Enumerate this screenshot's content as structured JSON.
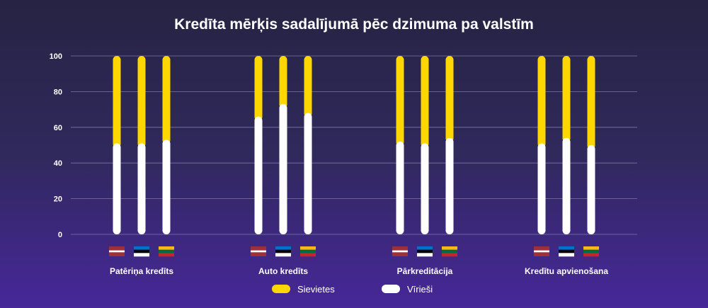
{
  "chart_data": {
    "type": "bar",
    "stacked": true,
    "title": "Kredīta mērķis sadalījumā pēc dzimuma pa valstīm",
    "categories": [
      "Patēriņa kredīts",
      "Auto kredīts",
      "Pārkreditācija",
      "Kredītu apvienošana"
    ],
    "countries": [
      {
        "name": "LV",
        "flag_colors": [
          "#9e3039",
          "#ffffff",
          "#9e3039"
        ]
      },
      {
        "name": "EE",
        "flag_colors": [
          "#0072ce",
          "#000000",
          "#ffffff"
        ]
      },
      {
        "name": "LT",
        "flag_colors": [
          "#fdb913",
          "#006a44",
          "#c1272d"
        ]
      }
    ],
    "series": [
      {
        "name": "Vīrieši",
        "color": "#ffffff",
        "values": [
          [
            51,
            51,
            53
          ],
          [
            66,
            73,
            68
          ],
          [
            52,
            51,
            54
          ],
          [
            51,
            54,
            50
          ]
        ]
      },
      {
        "name": "Sievietes",
        "color": "#ffd700",
        "values": [
          [
            49,
            49,
            47
          ],
          [
            34,
            27,
            32
          ],
          [
            48,
            49,
            46
          ],
          [
            49,
            46,
            50
          ]
        ]
      }
    ],
    "legend_order": [
      "Sievietes",
      "Vīrieši"
    ],
    "yticks": [
      0,
      20,
      40,
      60,
      80,
      100
    ],
    "ylim": [
      0,
      100
    ],
    "grid": true,
    "legend_position": "bottom"
  }
}
